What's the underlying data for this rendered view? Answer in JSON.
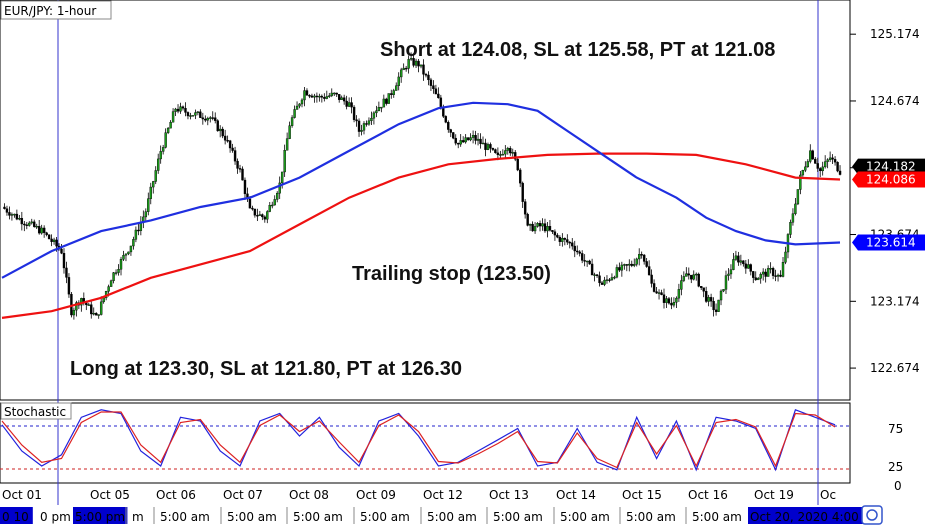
{
  "chart_data": [
    {
      "type": "candlestick",
      "title": "EUR/JPY: 1-hour",
      "ylim": [
        122.45,
        125.4
      ],
      "y_ticks": [
        125.174,
        124.674,
        124.174,
        123.674,
        123.174,
        122.674
      ],
      "y_tick_labels": [
        "125.174",
        "124.674",
        "124.174",
        "123.674",
        "123.174",
        "122.674"
      ],
      "price_tags": [
        {
          "label": "124.182",
          "value": 124.182,
          "bg": "#000000",
          "fg": "#ffffff"
        },
        {
          "label": "124.086",
          "value": 124.086,
          "bg": "#ff0000",
          "fg": "#ffffff"
        },
        {
          "label": "123.614",
          "value": 123.614,
          "bg": "#0000ff",
          "fg": "#ffffff"
        }
      ],
      "x_axis": {
        "dates": [
          "Oct 01",
          "Oct 05",
          "Oct 06",
          "Oct 07",
          "Oct 08",
          "Oct 09",
          "Oct 12",
          "Oct 13",
          "Oct 14",
          "Oct 15",
          "Oct 16",
          "Oct 19",
          "Oc"
        ],
        "times": [
          "0 10",
          "0 pm",
          "5:00 pm",
          "m",
          "5:00 am",
          "5:00 am",
          "5:00 am",
          "5:00 am",
          "5:00 am",
          "5:00 am",
          "5:00 am",
          "5:00 am",
          "5:00 am",
          "Oct 20, 2020 4:00"
        ]
      },
      "series": [
        {
          "name": "",
          "kind": "price",
          "points": [
            [
              0,
              123.88
            ],
            [
              4,
              123.78
            ],
            [
              8,
              123.7
            ],
            [
              12,
              123.55
            ],
            [
              14,
              123.1
            ],
            [
              16,
              123.2
            ],
            [
              19,
              123.05
            ],
            [
              22,
              123.35
            ],
            [
              26,
              123.6
            ],
            [
              29,
              123.85
            ],
            [
              32,
              124.3
            ],
            [
              35,
              124.62
            ],
            [
              38,
              124.58
            ],
            [
              42,
              124.55
            ],
            [
              45,
              124.4
            ],
            [
              48,
              124.15
            ],
            [
              50,
              123.85
            ],
            [
              53,
              123.8
            ],
            [
              56,
              124.05
            ],
            [
              58,
              124.5
            ],
            [
              61,
              124.75
            ],
            [
              64,
              124.7
            ],
            [
              67,
              124.72
            ],
            [
              70,
              124.65
            ],
            [
              72,
              124.45
            ],
            [
              75,
              124.6
            ],
            [
              78,
              124.7
            ],
            [
              80,
              124.85
            ],
            [
              82,
              124.97
            ],
            [
              84,
              124.95
            ],
            [
              86,
              124.82
            ],
            [
              88,
              124.68
            ],
            [
              90,
              124.48
            ],
            [
              92,
              124.35
            ],
            [
              95,
              124.4
            ],
            [
              98,
              124.32
            ],
            [
              100,
              124.25
            ],
            [
              102,
              124.35
            ],
            [
              104,
              124.18
            ],
            [
              106,
              123.72
            ],
            [
              109,
              123.74
            ],
            [
              112,
              123.65
            ],
            [
              115,
              123.6
            ],
            [
              118,
              123.45
            ],
            [
              121,
              123.3
            ],
            [
              124,
              123.4
            ],
            [
              127,
              123.45
            ],
            [
              129,
              123.55
            ],
            [
              131,
              123.3
            ],
            [
              133,
              123.2
            ],
            [
              135,
              123.15
            ],
            [
              138,
              123.38
            ],
            [
              140,
              123.35
            ],
            [
              142,
              123.2
            ],
            [
              144,
              123.1
            ],
            [
              146,
              123.35
            ],
            [
              148,
              123.5
            ],
            [
              150,
              123.45
            ],
            [
              152,
              123.35
            ],
            [
              155,
              123.4
            ],
            [
              157,
              123.35
            ],
            [
              159,
              123.75
            ],
            [
              161,
              124.1
            ],
            [
              163,
              124.3
            ],
            [
              165,
              124.15
            ],
            [
              167,
              124.25
            ],
            [
              169,
              124.15
            ]
          ]
        },
        {
          "name": "",
          "kind": "stochastic_k",
          "points": [
            [
              0,
              75
            ],
            [
              4,
              40
            ],
            [
              8,
              20
            ],
            [
              12,
              35
            ],
            [
              16,
              85
            ],
            [
              20,
              95
            ],
            [
              24,
              90
            ],
            [
              28,
              40
            ],
            [
              32,
              20
            ],
            [
              36,
              85
            ],
            [
              40,
              80
            ],
            [
              44,
              40
            ],
            [
              48,
              20
            ],
            [
              52,
              80
            ],
            [
              56,
              90
            ],
            [
              60,
              60
            ],
            [
              64,
              85
            ],
            [
              68,
              45
            ],
            [
              72,
              20
            ],
            [
              76,
              80
            ],
            [
              80,
              90
            ],
            [
              84,
              60
            ],
            [
              88,
              20
            ],
            [
              92,
              25
            ],
            [
              96,
              40
            ],
            [
              100,
              55
            ],
            [
              104,
              70
            ],
            [
              108,
              20
            ],
            [
              112,
              25
            ],
            [
              116,
              70
            ],
            [
              120,
              25
            ],
            [
              124,
              15
            ],
            [
              128,
              85
            ],
            [
              132,
              30
            ],
            [
              136,
              80
            ],
            [
              140,
              15
            ],
            [
              144,
              85
            ],
            [
              148,
              80
            ],
            [
              152,
              70
            ],
            [
              156,
              15
            ],
            [
              160,
              95
            ],
            [
              164,
              85
            ],
            [
              168,
              75
            ]
          ]
        },
        {
          "name": "",
          "kind": "stochastic_d",
          "points": [
            [
              0,
              80
            ],
            [
              4,
              48
            ],
            [
              8,
              25
            ],
            [
              12,
              30
            ],
            [
              16,
              78
            ],
            [
              20,
              92
            ],
            [
              24,
              92
            ],
            [
              28,
              48
            ],
            [
              32,
              25
            ],
            [
              36,
              78
            ],
            [
              40,
              82
            ],
            [
              44,
              48
            ],
            [
              48,
              25
            ],
            [
              52,
              74
            ],
            [
              56,
              88
            ],
            [
              60,
              66
            ],
            [
              64,
              80
            ],
            [
              68,
              52
            ],
            [
              72,
              25
            ],
            [
              76,
              74
            ],
            [
              80,
              88
            ],
            [
              84,
              66
            ],
            [
              88,
              26
            ],
            [
              92,
              24
            ],
            [
              96,
              36
            ],
            [
              100,
              50
            ],
            [
              104,
              66
            ],
            [
              108,
              26
            ],
            [
              112,
              24
            ],
            [
              116,
              64
            ],
            [
              120,
              30
            ],
            [
              124,
              18
            ],
            [
              128,
              78
            ],
            [
              132,
              36
            ],
            [
              136,
              74
            ],
            [
              140,
              20
            ],
            [
              144,
              78
            ],
            [
              148,
              82
            ],
            [
              152,
              72
            ],
            [
              156,
              20
            ],
            [
              160,
              90
            ],
            [
              164,
              88
            ],
            [
              168,
              72
            ]
          ]
        }
      ],
      "ma_fast": {
        "color": "#1f2fe0",
        "points": [
          [
            0,
            123.35
          ],
          [
            10,
            123.55
          ],
          [
            20,
            123.7
          ],
          [
            30,
            123.78
          ],
          [
            40,
            123.88
          ],
          [
            50,
            123.95
          ],
          [
            60,
            124.1
          ],
          [
            70,
            124.3
          ],
          [
            80,
            124.5
          ],
          [
            88,
            124.62
          ],
          [
            95,
            124.66
          ],
          [
            102,
            124.65
          ],
          [
            108,
            124.6
          ],
          [
            114,
            124.45
          ],
          [
            120,
            124.3
          ],
          [
            128,
            124.1
          ],
          [
            136,
            123.95
          ],
          [
            142,
            123.8
          ],
          [
            148,
            123.7
          ],
          [
            154,
            123.63
          ],
          [
            160,
            123.6
          ],
          [
            169,
            123.614
          ]
        ]
      },
      "ma_slow": {
        "color": "#ee1111",
        "points": [
          [
            0,
            123.05
          ],
          [
            10,
            123.1
          ],
          [
            20,
            123.2
          ],
          [
            30,
            123.35
          ],
          [
            40,
            123.45
          ],
          [
            50,
            123.55
          ],
          [
            60,
            123.75
          ],
          [
            70,
            123.95
          ],
          [
            80,
            124.1
          ],
          [
            90,
            124.2
          ],
          [
            100,
            124.24
          ],
          [
            110,
            124.27
          ],
          [
            120,
            124.28
          ],
          [
            130,
            124.28
          ],
          [
            140,
            124.27
          ],
          [
            150,
            124.2
          ],
          [
            160,
            124.1
          ],
          [
            169,
            124.086
          ]
        ]
      },
      "annotations": [
        {
          "text": "Short at 124.08, SL at 125.58, PT at 121.08"
        },
        {
          "text": "Trailing stop (123.50)"
        },
        {
          "text": "Long at 123.30, SL at 121.80, PT at 126.30"
        }
      ],
      "stochastic": {
        "label": "Stochastic",
        "ylim": [
          0,
          100
        ],
        "y_tick_labels": [
          "75",
          "25",
          "0"
        ],
        "levels": [
          80,
          20
        ]
      }
    }
  ]
}
